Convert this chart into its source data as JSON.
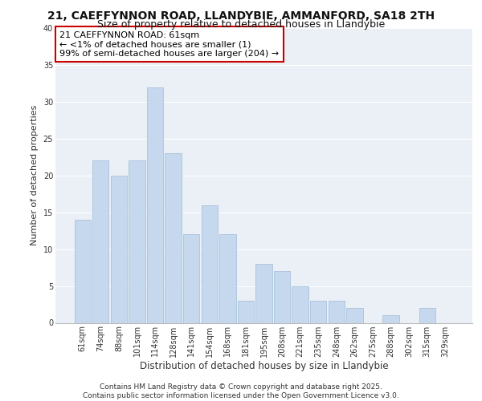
{
  "title_line1": "21, CAEFFYNNON ROAD, LLANDYBIE, AMMANFORD, SA18 2TH",
  "title_line2": "Size of property relative to detached houses in Llandybie",
  "xlabel": "Distribution of detached houses by size in Llandybie",
  "ylabel": "Number of detached properties",
  "categories": [
    "61sqm",
    "74sqm",
    "88sqm",
    "101sqm",
    "114sqm",
    "128sqm",
    "141sqm",
    "154sqm",
    "168sqm",
    "181sqm",
    "195sqm",
    "208sqm",
    "221sqm",
    "235sqm",
    "248sqm",
    "262sqm",
    "275sqm",
    "288sqm",
    "302sqm",
    "315sqm",
    "329sqm"
  ],
  "values": [
    14,
    22,
    20,
    22,
    32,
    23,
    12,
    16,
    12,
    3,
    8,
    7,
    5,
    3,
    3,
    2,
    0,
    1,
    0,
    2,
    0
  ],
  "bar_color": "#c5d8ed",
  "bar_edgecolor": "#a0bcd8",
  "annotation_text": "21 CAEFFYNNON ROAD: 61sqm\n← <1% of detached houses are smaller (1)\n99% of semi-detached houses are larger (204) →",
  "annotation_box_edgecolor": "#cc0000",
  "ylim": [
    0,
    40
  ],
  "yticks": [
    0,
    5,
    10,
    15,
    20,
    25,
    30,
    35,
    40
  ],
  "bg_color": "#eaf0f6",
  "grid_color": "#ffffff",
  "footer_text": "Contains HM Land Registry data © Crown copyright and database right 2025.\nContains public sector information licensed under the Open Government Licence v3.0.",
  "title_fontsize": 10,
  "subtitle_fontsize": 9,
  "xlabel_fontsize": 8.5,
  "ylabel_fontsize": 8,
  "tick_fontsize": 7,
  "annotation_fontsize": 8,
  "footer_fontsize": 6.5
}
